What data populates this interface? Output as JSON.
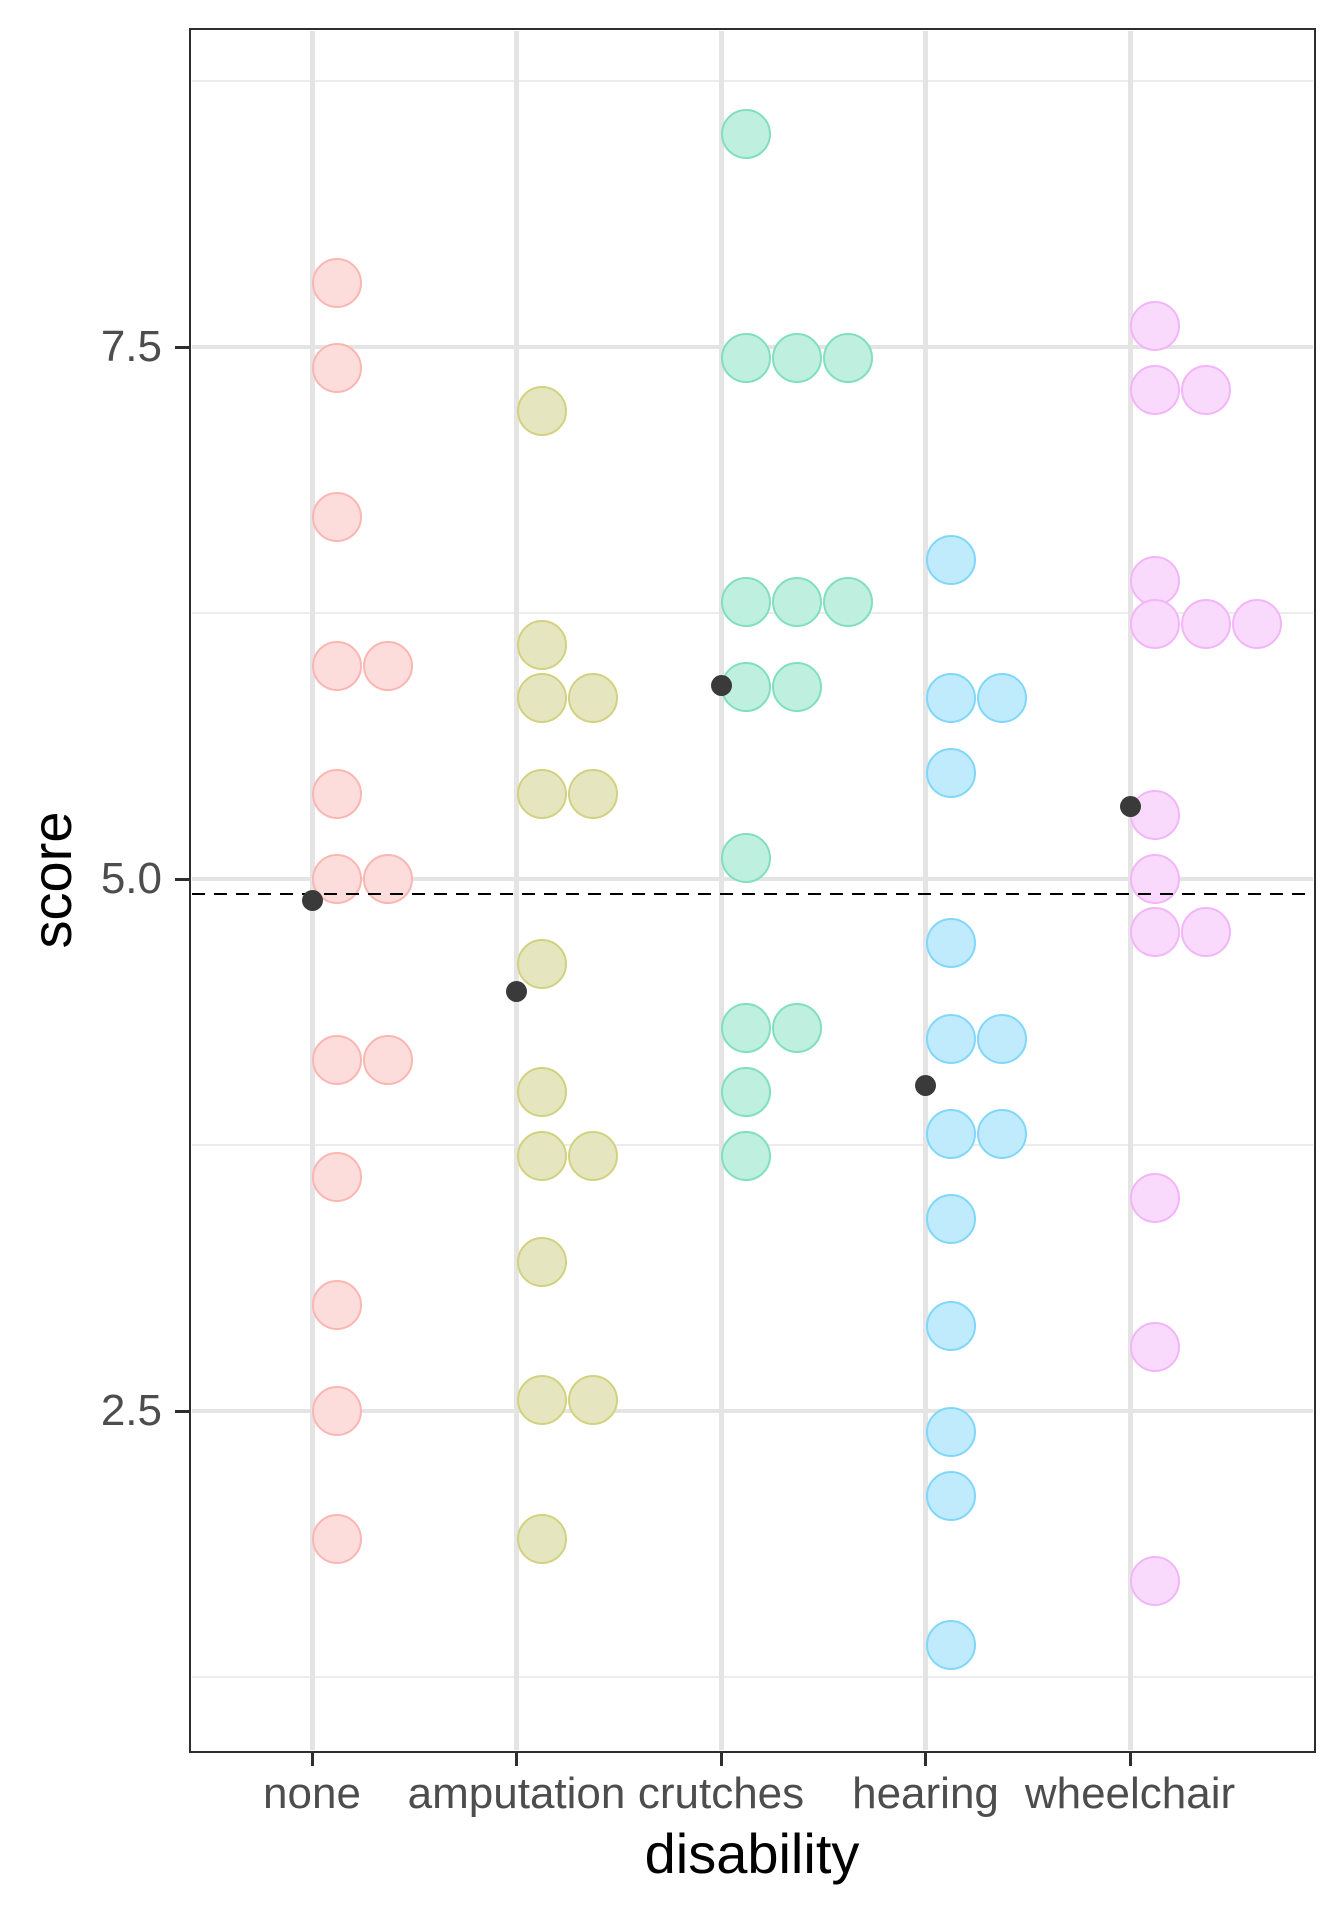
{
  "chart_data": {
    "type": "scatter",
    "subtype": "grouped-dot-strip-plot",
    "title": "",
    "xlabel": "disability",
    "ylabel": "score",
    "categories": [
      "none",
      "amputation",
      "crutches",
      "hearing",
      "wheelchair"
    ],
    "series": [
      {
        "name": "none",
        "fill": "#FDDDDB",
        "stroke": "#FBB6B1",
        "values": [
          7.8,
          7.4,
          6.7,
          6.0,
          6.0,
          5.4,
          5.0,
          5.0,
          4.15,
          4.15,
          3.6,
          3.0,
          2.5,
          1.9
        ]
      },
      {
        "name": "amputation",
        "fill": "#E5E6BF",
        "stroke": "#D1D280",
        "values": [
          7.2,
          6.1,
          5.85,
          5.85,
          5.4,
          5.4,
          4.6,
          4.0,
          3.7,
          3.7,
          3.2,
          2.55,
          2.55,
          1.9
        ]
      },
      {
        "name": "crutches",
        "fill": "#BFEFDE",
        "stroke": "#80DFBE",
        "values": [
          8.5,
          7.45,
          7.45,
          7.45,
          6.3,
          6.3,
          6.3,
          5.9,
          5.9,
          5.1,
          4.3,
          4.3,
          4.0,
          3.7
        ]
      },
      {
        "name": "hearing",
        "fill": "#BFEBFD",
        "stroke": "#80D7FA",
        "values": [
          6.5,
          5.85,
          5.85,
          5.5,
          4.7,
          4.25,
          4.25,
          3.8,
          3.8,
          3.4,
          2.9,
          2.4,
          2.1,
          1.4
        ]
      },
      {
        "name": "wheelchair",
        "fill": "#F9DAFC",
        "stroke": "#F3B5F9",
        "values": [
          7.6,
          7.3,
          7.3,
          6.4,
          6.2,
          6.2,
          6.2,
          5.3,
          5.0,
          4.75,
          4.75,
          3.5,
          2.8,
          1.7
        ]
      }
    ],
    "group_means": [
      4.9,
      4.47,
      5.91,
      4.03,
      5.34
    ],
    "overall_mean_line": 4.93,
    "y_ticks": [
      {
        "label": "7.5",
        "value": 7.5
      },
      {
        "label": "5.0",
        "value": 5.0
      },
      {
        "label": "2.5",
        "value": 2.5
      }
    ],
    "ylim": [
      0.9,
      9.0
    ],
    "grid": {
      "major": [
        2.5,
        5.0,
        7.5
      ],
      "minor": [
        1.25,
        3.75,
        6.25,
        8.75
      ],
      "on": true
    },
    "legend": "none"
  },
  "colors": {
    "mean_dot": "#3A3A3A",
    "dashed_line": "#000000",
    "grid_major": "#E4E4E4",
    "grid_minor": "#ECECEC",
    "panel_border": "#2E2E2E",
    "tick_label": "#4D4D4D",
    "axis_title": "#000000",
    "background": "#FFFFFF"
  }
}
